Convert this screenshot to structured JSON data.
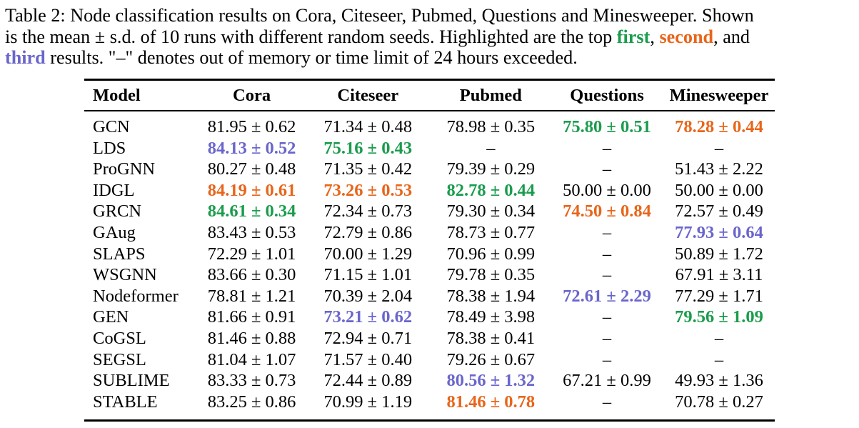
{
  "caption": {
    "line1": "Table 2: Node classification results on Cora, Citeseer, Pubmed, Questions and Minesweeper. Shown",
    "line2_prefix": "is the mean ± s.d. of 10 runs with different random seeds. Highlighted are the top ",
    "first_word": "first",
    "comma1": ", ",
    "second_word": "second",
    "line2_suffix": ", and",
    "third_word": "third",
    "line3_suffix": " results. \"–\" denotes out of memory or time limit of 24 hours exceeded."
  },
  "colors": {
    "first": "#1a9c4c",
    "second": "#e8651a",
    "third": "#6a66cc"
  },
  "table": {
    "headers": [
      "Model",
      "Cora",
      "Citeseer",
      "Pubmed",
      "Questions",
      "Minesweeper"
    ],
    "rows": [
      {
        "model": "GCN",
        "cells": [
          {
            "v": "81.95 ± 0.62",
            "r": ""
          },
          {
            "v": "71.34 ± 0.48",
            "r": ""
          },
          {
            "v": "78.98 ± 0.35",
            "r": ""
          },
          {
            "v": "75.80 ± 0.51",
            "r": "first"
          },
          {
            "v": "78.28 ± 0.44",
            "r": "second"
          }
        ]
      },
      {
        "model": "LDS",
        "cells": [
          {
            "v": "84.13 ± 0.52",
            "r": "third"
          },
          {
            "v": "75.16 ± 0.43",
            "r": "first"
          },
          {
            "v": "–",
            "r": ""
          },
          {
            "v": "–",
            "r": ""
          },
          {
            "v": "–",
            "r": ""
          }
        ]
      },
      {
        "model": "ProGNN",
        "cells": [
          {
            "v": "80.27 ± 0.48",
            "r": ""
          },
          {
            "v": "71.35 ± 0.42",
            "r": ""
          },
          {
            "v": "79.39 ± 0.29",
            "r": ""
          },
          {
            "v": "–",
            "r": ""
          },
          {
            "v": "51.43 ± 2.22",
            "r": ""
          }
        ]
      },
      {
        "model": "IDGL",
        "cells": [
          {
            "v": "84.19 ± 0.61",
            "r": "second"
          },
          {
            "v": "73.26 ± 0.53",
            "r": "second"
          },
          {
            "v": "82.78 ± 0.44",
            "r": "first"
          },
          {
            "v": "50.00 ± 0.00",
            "r": ""
          },
          {
            "v": "50.00 ± 0.00",
            "r": ""
          }
        ]
      },
      {
        "model": "GRCN",
        "cells": [
          {
            "v": "84.61 ± 0.34",
            "r": "first"
          },
          {
            "v": "72.34 ± 0.73",
            "r": ""
          },
          {
            "v": "79.30 ± 0.34",
            "r": ""
          },
          {
            "v": "74.50 ± 0.84",
            "r": "second"
          },
          {
            "v": "72.57 ± 0.49",
            "r": ""
          }
        ]
      },
      {
        "model": "GAug",
        "cells": [
          {
            "v": "83.43 ± 0.53",
            "r": ""
          },
          {
            "v": "72.79 ± 0.86",
            "r": ""
          },
          {
            "v": "78.73 ± 0.77",
            "r": ""
          },
          {
            "v": "–",
            "r": ""
          },
          {
            "v": "77.93 ± 0.64",
            "r": "third"
          }
        ]
      },
      {
        "model": "SLAPS",
        "cells": [
          {
            "v": "72.29 ± 1.01",
            "r": ""
          },
          {
            "v": "70.00 ± 1.29",
            "r": ""
          },
          {
            "v": "70.96 ± 0.99",
            "r": ""
          },
          {
            "v": "–",
            "r": ""
          },
          {
            "v": "50.89 ± 1.72",
            "r": ""
          }
        ]
      },
      {
        "model": "WSGNN",
        "cells": [
          {
            "v": "83.66 ± 0.30",
            "r": ""
          },
          {
            "v": "71.15 ± 1.01",
            "r": ""
          },
          {
            "v": "79.78 ± 0.35",
            "r": ""
          },
          {
            "v": "–",
            "r": ""
          },
          {
            "v": "67.91 ± 3.11",
            "r": ""
          }
        ]
      },
      {
        "model": "Nodeformer",
        "cells": [
          {
            "v": "78.81 ± 1.21",
            "r": ""
          },
          {
            "v": "70.39 ± 2.04",
            "r": ""
          },
          {
            "v": "78.38 ± 1.94",
            "r": ""
          },
          {
            "v": "72.61 ± 2.29",
            "r": "third"
          },
          {
            "v": "77.29 ± 1.71",
            "r": ""
          }
        ]
      },
      {
        "model": "GEN",
        "cells": [
          {
            "v": "81.66 ± 0.91",
            "r": ""
          },
          {
            "v": "73.21 ± 0.62",
            "r": "third"
          },
          {
            "v": "78.49 ± 3.98",
            "r": ""
          },
          {
            "v": "–",
            "r": ""
          },
          {
            "v": "79.56 ± 1.09",
            "r": "first"
          }
        ]
      },
      {
        "model": "CoGSL",
        "cells": [
          {
            "v": "81.46 ± 0.88",
            "r": ""
          },
          {
            "v": "72.94 ± 0.71",
            "r": ""
          },
          {
            "v": "78.38 ± 0.41",
            "r": ""
          },
          {
            "v": "–",
            "r": ""
          },
          {
            "v": "–",
            "r": ""
          }
        ]
      },
      {
        "model": "SEGSL",
        "cells": [
          {
            "v": "81.04 ± 1.07",
            "r": ""
          },
          {
            "v": "71.57 ± 0.40",
            "r": ""
          },
          {
            "v": "79.26 ± 0.67",
            "r": ""
          },
          {
            "v": "–",
            "r": ""
          },
          {
            "v": "–",
            "r": ""
          }
        ]
      },
      {
        "model": "SUBLIME",
        "cells": [
          {
            "v": "83.33 ± 0.73",
            "r": ""
          },
          {
            "v": "72.44 ± 0.89",
            "r": ""
          },
          {
            "v": "80.56 ± 1.32",
            "r": "third"
          },
          {
            "v": "67.21 ± 0.99",
            "r": ""
          },
          {
            "v": "49.93 ± 1.36",
            "r": ""
          }
        ]
      },
      {
        "model": "STABLE",
        "cells": [
          {
            "v": "83.25 ± 0.86",
            "r": ""
          },
          {
            "v": "70.99 ± 1.19",
            "r": ""
          },
          {
            "v": "81.46 ± 0.78",
            "r": "second"
          },
          {
            "v": "–",
            "r": ""
          },
          {
            "v": "70.78 ± 0.27",
            "r": ""
          }
        ]
      }
    ]
  }
}
